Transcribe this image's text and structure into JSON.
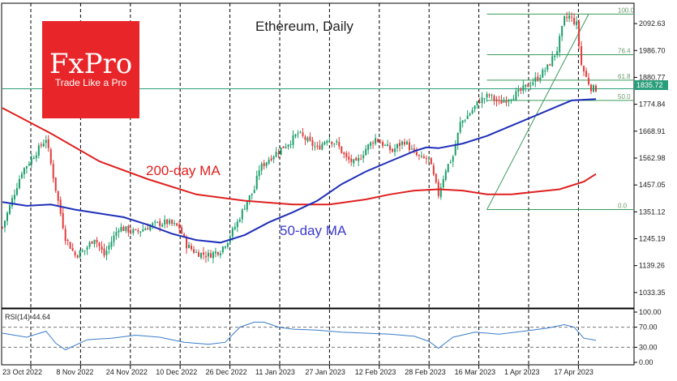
{
  "brand": {
    "name": "FxPro",
    "tagline": "Trade Like a Pro",
    "color": "#e8262a"
  },
  "colors": {
    "up": "#1a9e6b",
    "down": "#e23a3a",
    "ma50": "#1f2fb8",
    "ma200": "#e02020",
    "fib": "#3a9a5a",
    "current": "#2a9e7a",
    "rsi": "#3a7cc8",
    "grid": "#000000"
  },
  "chart_data": [
    {
      "type": "candlestick",
      "title": "Ethereum, Daily",
      "x_labels": [
        "23 Oct 2022",
        "8 Nov 2022",
        "24 Nov 2022",
        "10 Dec 2022",
        "26 Dec 2022",
        "11 Jan 2023",
        "27 Jan 2023",
        "12 Feb 2023",
        "28 Feb 2023",
        "16 Mar 2023",
        "1 Apr 2023",
        "17 Apr 2023"
      ],
      "y_ticks": [
        "2092.63",
        "1986.70",
        "1880.77",
        "1774.84",
        "1668.91",
        "1562.98",
        "1457.05",
        "1351.12",
        "1245.19",
        "1139.26",
        "1033.35"
      ],
      "ylim": [
        985,
        2160
      ],
      "current_price": "1835.72",
      "vertical_grid": "dashed",
      "series_labels": {
        "ma200": "200-day MA",
        "ma50": "50-day MA"
      },
      "fibonacci": {
        "levels": [
          {
            "label": "100.0",
            "price": 2130
          },
          {
            "label": "76.4",
            "price": 1970
          },
          {
            "label": "61.8",
            "price": 1870
          },
          {
            "label": "50.0",
            "price": 1790
          },
          {
            "label": "0.0",
            "price": 1360
          }
        ],
        "start_date": "2023-03-10",
        "end_date": "2023-04-21"
      },
      "ma200": [
        [
          0,
          1760
        ],
        [
          20,
          1660
        ],
        [
          40,
          1550
        ],
        [
          60,
          1480
        ],
        [
          80,
          1420
        ],
        [
          100,
          1395
        ],
        [
          120,
          1380
        ],
        [
          135,
          1380
        ],
        [
          150,
          1400
        ],
        [
          160,
          1420
        ],
        [
          170,
          1435
        ],
        [
          180,
          1440
        ],
        [
          190,
          1435
        ],
        [
          200,
          1420
        ],
        [
          210,
          1420
        ],
        [
          220,
          1430
        ],
        [
          230,
          1440
        ],
        [
          240,
          1470
        ],
        [
          245,
          1500
        ]
      ],
      "ma50": [
        [
          0,
          1390
        ],
        [
          10,
          1375
        ],
        [
          20,
          1380
        ],
        [
          30,
          1360
        ],
        [
          40,
          1345
        ],
        [
          50,
          1330
        ],
        [
          60,
          1300
        ],
        [
          70,
          1265
        ],
        [
          80,
          1240
        ],
        [
          90,
          1230
        ],
        [
          100,
          1260
        ],
        [
          110,
          1310
        ],
        [
          120,
          1350
        ],
        [
          130,
          1395
        ],
        [
          140,
          1460
        ],
        [
          150,
          1510
        ],
        [
          160,
          1550
        ],
        [
          170,
          1590
        ],
        [
          175,
          1605
        ],
        [
          180,
          1602
        ],
        [
          190,
          1620
        ],
        [
          200,
          1650
        ],
        [
          210,
          1690
        ],
        [
          220,
          1730
        ],
        [
          230,
          1770
        ],
        [
          235,
          1790
        ],
        [
          245,
          1795
        ]
      ],
      "close_path": [
        [
          0,
          1290
        ],
        [
          8,
          1510
        ],
        [
          12,
          1560
        ],
        [
          18,
          1640
        ],
        [
          22,
          1440
        ],
        [
          26,
          1250
        ],
        [
          30,
          1180
        ],
        [
          34,
          1200
        ],
        [
          38,
          1250
        ],
        [
          42,
          1180
        ],
        [
          48,
          1290
        ],
        [
          55,
          1270
        ],
        [
          62,
          1300
        ],
        [
          68,
          1310
        ],
        [
          73,
          1290
        ],
        [
          76,
          1220
        ],
        [
          80,
          1190
        ],
        [
          85,
          1180
        ],
        [
          90,
          1200
        ],
        [
          93,
          1240
        ],
        [
          97,
          1310
        ],
        [
          101,
          1395
        ],
        [
          104,
          1440
        ],
        [
          106,
          1520
        ],
        [
          110,
          1560
        ],
        [
          115,
          1600
        ],
        [
          119,
          1630
        ],
        [
          122,
          1660
        ],
        [
          126,
          1630
        ],
        [
          130,
          1600
        ],
        [
          134,
          1640
        ],
        [
          138,
          1620
        ],
        [
          142,
          1560
        ],
        [
          146,
          1540
        ],
        [
          150,
          1600
        ],
        [
          154,
          1640
        ],
        [
          158,
          1610
        ],
        [
          161,
          1590
        ],
        [
          163,
          1610
        ],
        [
          166,
          1630
        ],
        [
          170,
          1580
        ],
        [
          173,
          1560
        ],
        [
          176,
          1560
        ],
        [
          180,
          1420
        ],
        [
          183,
          1520
        ],
        [
          186,
          1570
        ],
        [
          189,
          1700
        ],
        [
          193,
          1740
        ],
        [
          197,
          1790
        ],
        [
          201,
          1810
        ],
        [
          205,
          1780
        ],
        [
          209,
          1800
        ],
        [
          213,
          1820
        ],
        [
          217,
          1850
        ],
        [
          221,
          1880
        ],
        [
          225,
          1920
        ],
        [
          229,
          1990
        ],
        [
          232,
          2110
        ],
        [
          234,
          2120
        ],
        [
          237,
          2090
        ],
        [
          239,
          1930
        ],
        [
          241,
          1880
        ],
        [
          243,
          1840
        ],
        [
          245,
          1835
        ]
      ]
    },
    {
      "type": "line",
      "title": "RSI(14) 44.64",
      "y_ticks": [
        "100.00",
        "70.00",
        "30.00",
        "0.00"
      ],
      "ylim": [
        0,
        100
      ],
      "levels": [
        70,
        30
      ],
      "values": [
        [
          0,
          58
        ],
        [
          10,
          50
        ],
        [
          18,
          62
        ],
        [
          22,
          38
        ],
        [
          26,
          25
        ],
        [
          35,
          45
        ],
        [
          45,
          48
        ],
        [
          55,
          54
        ],
        [
          65,
          50
        ],
        [
          75,
          40
        ],
        [
          85,
          36
        ],
        [
          92,
          40
        ],
        [
          98,
          70
        ],
        [
          104,
          80
        ],
        [
          108,
          80
        ],
        [
          114,
          70
        ],
        [
          120,
          66
        ],
        [
          130,
          64
        ],
        [
          140,
          60
        ],
        [
          150,
          58
        ],
        [
          160,
          56
        ],
        [
          170,
          52
        ],
        [
          176,
          42
        ],
        [
          180,
          28
        ],
        [
          186,
          50
        ],
        [
          195,
          60
        ],
        [
          205,
          56
        ],
        [
          215,
          62
        ],
        [
          225,
          68
        ],
        [
          232,
          75
        ],
        [
          236,
          70
        ],
        [
          240,
          48
        ],
        [
          245,
          44
        ]
      ]
    }
  ]
}
